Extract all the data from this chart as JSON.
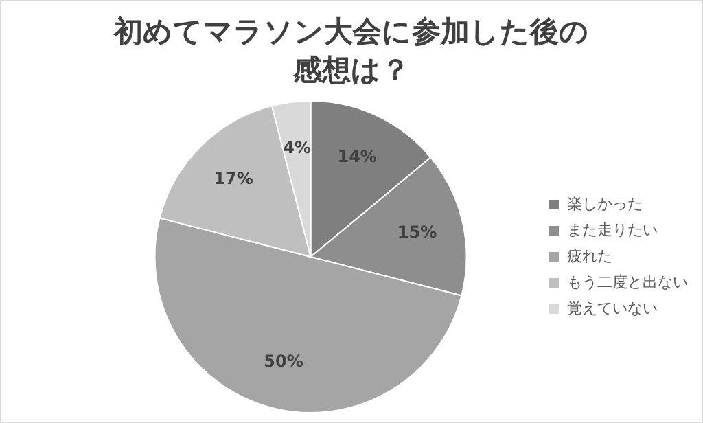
{
  "chart_data": {
    "type": "pie",
    "title": "初めてマラソン大会に参加した後の感想は？",
    "categories": [
      "楽しかった",
      "また走りたい",
      "疲れた",
      "もう二度と出ない",
      "覚えていない"
    ],
    "values": [
      14,
      15,
      50,
      17,
      4
    ],
    "colors": [
      "#7f7f7f",
      "#8e8e8e",
      "#a5a5a5",
      "#bfbfbf",
      "#d9d9d9"
    ],
    "value_labels": [
      "14%",
      "15%",
      "50%",
      "17%",
      "4%"
    ],
    "legend": "right"
  }
}
